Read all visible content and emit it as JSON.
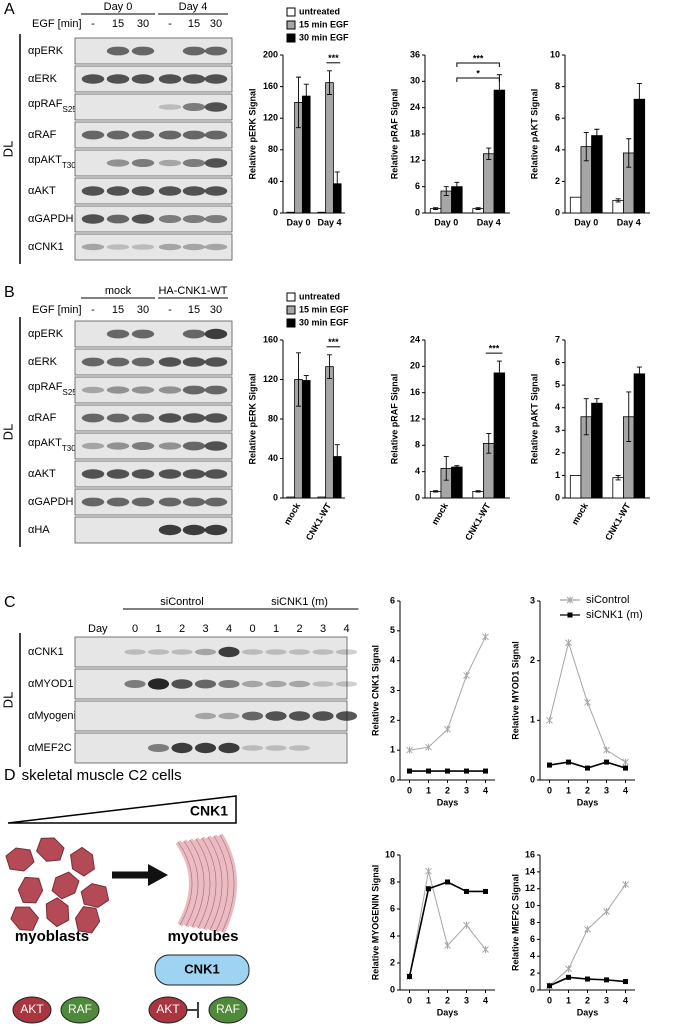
{
  "panel_a": {
    "letter": "A",
    "condition_label": "EGF [min]",
    "groups": [
      "Day 0",
      "Day 4"
    ],
    "lanes": [
      "-",
      "15",
      "30",
      "-",
      "15",
      "30"
    ],
    "side_label": "DL",
    "rows": [
      {
        "name": "αpERK"
      },
      {
        "name": "αERK"
      },
      {
        "name": "αpRAF",
        "sub": "S259"
      },
      {
        "name": "αRAF"
      },
      {
        "name": "αpAKT",
        "sub": "T308"
      },
      {
        "name": "αAKT"
      },
      {
        "name": "αGAPDH"
      },
      {
        "name": "αCNK1"
      }
    ]
  },
  "panel_b": {
    "letter": "B",
    "condition_label": "EGF [min]",
    "groups": [
      "mock",
      "HA-CNK1-WT"
    ],
    "lanes": [
      "-",
      "15",
      "30",
      "-",
      "15",
      "30"
    ],
    "side_label": "DL",
    "rows": [
      {
        "name": "αpERK"
      },
      {
        "name": "αERK"
      },
      {
        "name": "αpRAF",
        "sub": "S259"
      },
      {
        "name": "αRAF"
      },
      {
        "name": "αpAKT",
        "sub": "T308"
      },
      {
        "name": "αAKT"
      },
      {
        "name": "αGAPDH"
      },
      {
        "name": "αHA"
      }
    ]
  },
  "panel_c": {
    "letter": "C",
    "condition_label": "Day",
    "groups": [
      "siControl",
      "siCNK1 (m)"
    ],
    "lanes": [
      "0",
      "1",
      "2",
      "3",
      "4",
      "0",
      "1",
      "2",
      "3",
      "4"
    ],
    "side_label": "DL",
    "rows": [
      {
        "name": "αCNK1"
      },
      {
        "name": "αMYOD1"
      },
      {
        "name": "αMyogenin"
      },
      {
        "name": "αMEF2C"
      }
    ]
  },
  "panel_d": {
    "letter": "D",
    "title": "skeletal muscle C2 cells",
    "gradient_label": "CNK1",
    "left_label": "myoblasts",
    "right_label": "myotubes",
    "left_nodes": [
      "AKT",
      "RAF"
    ],
    "complex_label": "CNK1",
    "right_nodes": [
      "AKT",
      "RAF"
    ]
  },
  "chart_data": [
    {
      "type": "bar",
      "y_label": "Relative pERK Signal",
      "categories": [
        "Day 0",
        "Day 4"
      ],
      "ylim": [
        0,
        200
      ],
      "yticks": [
        0,
        40,
        80,
        120,
        160,
        200
      ],
      "legend": true,
      "annotations": [
        "***"
      ],
      "series": [
        {
          "name": "untreated",
          "color": "#ffffff",
          "values": [
            1,
            1
          ],
          "errors": [
            0,
            0
          ]
        },
        {
          "name": "15 min EGF",
          "color": "#a6a6a6",
          "values": [
            140,
            165
          ],
          "errors": [
            32,
            15
          ]
        },
        {
          "name": "30 min EGF",
          "color": "#000000",
          "values": [
            148,
            37
          ],
          "errors": [
            15,
            15
          ]
        }
      ]
    },
    {
      "type": "bar",
      "y_label": "Relative pRAF Signal",
      "categories": [
        "Day 0",
        "Day 4"
      ],
      "ylim": [
        0,
        36
      ],
      "yticks": [
        0,
        6,
        12,
        18,
        24,
        30,
        36
      ],
      "legend": false,
      "annotations": [
        "***",
        "*"
      ],
      "series": [
        {
          "name": "untreated",
          "color": "#ffffff",
          "values": [
            1,
            1
          ],
          "errors": [
            0.2,
            0.2
          ]
        },
        {
          "name": "15 min EGF",
          "color": "#a6a6a6",
          "values": [
            5,
            13.5
          ],
          "errors": [
            1,
            1.3
          ]
        },
        {
          "name": "30 min EGF",
          "color": "#000000",
          "values": [
            6,
            28
          ],
          "errors": [
            1,
            3.5
          ]
        }
      ]
    },
    {
      "type": "bar",
      "y_label": "Relative pAKT Signal",
      "categories": [
        "Day 0",
        "Day 4"
      ],
      "ylim": [
        0,
        10
      ],
      "yticks": [
        0,
        2,
        4,
        6,
        8,
        10
      ],
      "legend": false,
      "annotations": [],
      "series": [
        {
          "name": "untreated",
          "color": "#ffffff",
          "values": [
            1,
            0.8
          ],
          "errors": [
            0,
            0.1
          ]
        },
        {
          "name": "15 min EGF",
          "color": "#a6a6a6",
          "values": [
            4.2,
            3.8
          ],
          "errors": [
            0.9,
            0.9
          ]
        },
        {
          "name": "30 min EGF",
          "color": "#000000",
          "values": [
            4.9,
            7.2
          ],
          "errors": [
            0.4,
            1
          ]
        }
      ]
    },
    {
      "type": "bar",
      "y_label": "Relative pERK Signal",
      "categories": [
        "mock",
        "CNK1-WT"
      ],
      "ylim": [
        0,
        160
      ],
      "yticks": [
        0,
        40,
        80,
        120,
        160
      ],
      "legend": true,
      "annotations": [
        "***"
      ],
      "series": [
        {
          "name": "untreated",
          "color": "#ffffff",
          "values": [
            1,
            1
          ],
          "errors": [
            0,
            0
          ]
        },
        {
          "name": "15 min EGF",
          "color": "#a6a6a6",
          "values": [
            120,
            133
          ],
          "errors": [
            27,
            12
          ]
        },
        {
          "name": "30 min EGF",
          "color": "#000000",
          "values": [
            119,
            42
          ],
          "errors": [
            5,
            12
          ]
        }
      ]
    },
    {
      "type": "bar",
      "y_label": "Relative pRAF Signal",
      "categories": [
        "mock",
        "CNK1-WT"
      ],
      "ylim": [
        0,
        24
      ],
      "yticks": [
        0,
        4,
        8,
        12,
        16,
        20,
        24
      ],
      "legend": false,
      "annotations": [
        "***"
      ],
      "series": [
        {
          "name": "untreated",
          "color": "#ffffff",
          "values": [
            1,
            1
          ],
          "errors": [
            0.1,
            0.1
          ]
        },
        {
          "name": "15 min EGF",
          "color": "#a6a6a6",
          "values": [
            4.5,
            8.3
          ],
          "errors": [
            1.8,
            1.5
          ]
        },
        {
          "name": "30 min EGF",
          "color": "#000000",
          "values": [
            4.7,
            19
          ],
          "errors": [
            0.2,
            1.8
          ]
        }
      ]
    },
    {
      "type": "bar",
      "y_label": "Relative pAKT Signal",
      "categories": [
        "mock",
        "CNK1-WT"
      ],
      "ylim": [
        0,
        7
      ],
      "yticks": [
        0,
        1,
        2,
        3,
        4,
        5,
        6,
        7
      ],
      "legend": false,
      "annotations": [],
      "series": [
        {
          "name": "untreated",
          "color": "#ffffff",
          "values": [
            1,
            0.9
          ],
          "errors": [
            0,
            0.1
          ]
        },
        {
          "name": "15 min EGF",
          "color": "#a6a6a6",
          "values": [
            3.6,
            3.6
          ],
          "errors": [
            0.8,
            1.1
          ]
        },
        {
          "name": "30 min EGF",
          "color": "#000000",
          "values": [
            4.2,
            5.5
          ],
          "errors": [
            0.2,
            0.3
          ]
        }
      ]
    },
    {
      "type": "line",
      "y_label": "Relative CNK1 Signal",
      "x_label": "Days",
      "x": [
        0,
        1,
        2,
        3,
        4
      ],
      "xlim": [
        -0.5,
        4.5
      ],
      "xticks": [
        0,
        1,
        2,
        3,
        4
      ],
      "ylim": [
        0,
        6
      ],
      "yticks": [
        0,
        1,
        2,
        3,
        4,
        5,
        6
      ],
      "legend": false,
      "series": [
        {
          "name": "siControl",
          "color": "#a6a6a6",
          "marker": "asterisk",
          "values": [
            1,
            1.1,
            1.7,
            3.5,
            4.8
          ]
        },
        {
          "name": "siCNK1 (m)",
          "color": "#000000",
          "marker": "square",
          "values": [
            0.3,
            0.3,
            0.3,
            0.3,
            0.3
          ]
        }
      ]
    },
    {
      "type": "line",
      "y_label": "Relative MYOD1 Signal",
      "x_label": "Days",
      "x": [
        0,
        1,
        2,
        3,
        4
      ],
      "xlim": [
        -0.5,
        4.5
      ],
      "xticks": [
        0,
        1,
        2,
        3,
        4
      ],
      "ylim": [
        0,
        3
      ],
      "yticks": [
        0,
        1,
        2,
        3
      ],
      "legend": true,
      "series": [
        {
          "name": "siControl",
          "color": "#a6a6a6",
          "marker": "asterisk",
          "values": [
            1,
            2.3,
            1.3,
            0.5,
            0.3
          ]
        },
        {
          "name": "siCNK1 (m)",
          "color": "#000000",
          "marker": "square",
          "values": [
            0.25,
            0.3,
            0.2,
            0.3,
            0.2
          ]
        }
      ]
    },
    {
      "type": "line",
      "y_label": "Relative MYOGENIN Signal",
      "x_label": "Days",
      "x": [
        0,
        1,
        2,
        3,
        4
      ],
      "xlim": [
        -0.5,
        4.5
      ],
      "xticks": [
        0,
        1,
        2,
        3,
        4
      ],
      "ylim": [
        0,
        10
      ],
      "yticks": [
        0,
        2,
        4,
        6,
        8,
        10
      ],
      "legend": false,
      "series": [
        {
          "name": "siControl",
          "color": "#a6a6a6",
          "marker": "asterisk",
          "values": [
            1,
            8.8,
            3.3,
            4.8,
            3
          ]
        },
        {
          "name": "siCNK1 (m)",
          "color": "#000000",
          "marker": "square",
          "values": [
            1,
            7.5,
            8,
            7.3,
            7.3
          ]
        }
      ]
    },
    {
      "type": "line",
      "y_label": "Relative MEF2C Signal",
      "x_label": "Days",
      "x": [
        0,
        1,
        2,
        3,
        4
      ],
      "xlim": [
        -0.5,
        4.5
      ],
      "xticks": [
        0,
        1,
        2,
        3,
        4
      ],
      "ylim": [
        0,
        16
      ],
      "yticks": [
        0,
        2,
        4,
        6,
        8,
        10,
        12,
        14,
        16
      ],
      "legend": false,
      "series": [
        {
          "name": "siControl",
          "color": "#a6a6a6",
          "marker": "asterisk",
          "values": [
            0.5,
            2.5,
            7.2,
            9.3,
            12.5
          ]
        },
        {
          "name": "siCNK1 (m)",
          "color": "#000000",
          "marker": "square",
          "values": [
            0.5,
            1.5,
            1.3,
            1.2,
            1
          ]
        }
      ]
    }
  ]
}
